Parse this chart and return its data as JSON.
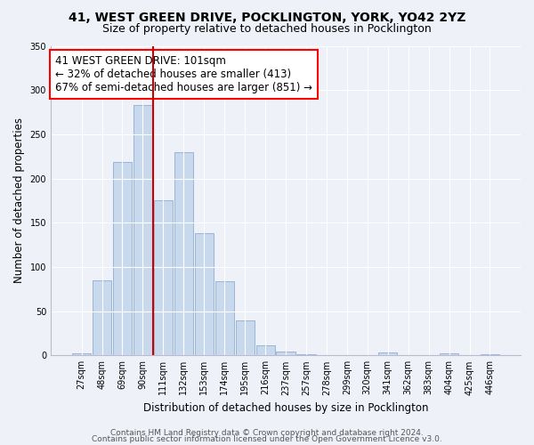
{
  "title": "41, WEST GREEN DRIVE, POCKLINGTON, YORK, YO42 2YZ",
  "subtitle": "Size of property relative to detached houses in Pocklington",
  "xlabel": "Distribution of detached houses by size in Pocklington",
  "ylabel": "Number of detached properties",
  "bar_labels": [
    "27sqm",
    "48sqm",
    "69sqm",
    "90sqm",
    "111sqm",
    "132sqm",
    "153sqm",
    "174sqm",
    "195sqm",
    "216sqm",
    "237sqm",
    "257sqm",
    "278sqm",
    "299sqm",
    "320sqm",
    "341sqm",
    "362sqm",
    "383sqm",
    "404sqm",
    "425sqm",
    "446sqm"
  ],
  "bar_values": [
    2,
    85,
    219,
    283,
    175,
    230,
    138,
    84,
    40,
    11,
    4,
    1,
    0,
    0,
    0,
    3,
    0,
    0,
    2,
    0,
    1
  ],
  "bar_color": "#c8d9ee",
  "bar_edge_color": "#9ab5d5",
  "vline_x": 3.5,
  "vline_color": "#cc0000",
  "annotation_box_text": "41 WEST GREEN DRIVE: 101sqm\n← 32% of detached houses are smaller (413)\n67% of semi-detached houses are larger (851) →",
  "ylim": [
    0,
    350
  ],
  "yticks": [
    0,
    50,
    100,
    150,
    200,
    250,
    300,
    350
  ],
  "footer_line1": "Contains HM Land Registry data © Crown copyright and database right 2024.",
  "footer_line2": "Contains public sector information licensed under the Open Government Licence v3.0.",
  "bg_color": "#eef2f8",
  "plot_bg_color": "#eef2f8",
  "title_fontsize": 10,
  "subtitle_fontsize": 9,
  "axis_label_fontsize": 8.5,
  "tick_fontsize": 7,
  "footer_fontsize": 6.5,
  "annotation_fontsize": 8.5
}
